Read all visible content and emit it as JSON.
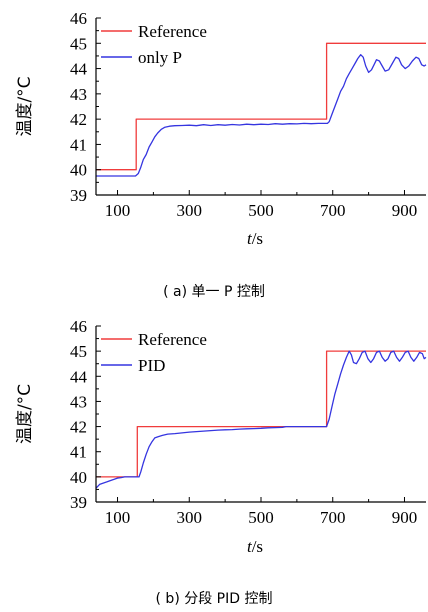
{
  "chart_data": [
    {
      "type": "line",
      "caption": "( a) 单一 P 控制",
      "xlabel": "t/s",
      "ylabel": "温度/°C",
      "xlim": [
        40,
        960
      ],
      "ylim": [
        39,
        46
      ],
      "xticks": [
        100,
        300,
        500,
        700,
        900
      ],
      "yticks": [
        39,
        40,
        41,
        42,
        43,
        44,
        45,
        46
      ],
      "grid": false,
      "legend": "top-left",
      "series": [
        {
          "name": "Reference",
          "color": "#f03c3c",
          "points": [
            [
              40,
              40
            ],
            [
              152,
              40
            ],
            [
              152,
              42
            ],
            [
              683,
              42
            ],
            [
              683,
              45
            ],
            [
              960,
              45
            ]
          ]
        },
        {
          "name": "only P",
          "color": "#3535e0",
          "points": [
            [
              40,
              39.75
            ],
            [
              150,
              39.75
            ],
            [
              158,
              39.85
            ],
            [
              165,
              40.1
            ],
            [
              172,
              40.4
            ],
            [
              180,
              40.6
            ],
            [
              188,
              40.9
            ],
            [
              196,
              41.1
            ],
            [
              204,
              41.3
            ],
            [
              212,
              41.45
            ],
            [
              222,
              41.6
            ],
            [
              232,
              41.68
            ],
            [
              245,
              41.72
            ],
            [
              260,
              41.74
            ],
            [
              280,
              41.75
            ],
            [
              300,
              41.76
            ],
            [
              320,
              41.74
            ],
            [
              340,
              41.78
            ],
            [
              360,
              41.75
            ],
            [
              380,
              41.78
            ],
            [
              400,
              41.76
            ],
            [
              420,
              41.79
            ],
            [
              440,
              41.77
            ],
            [
              460,
              41.8
            ],
            [
              480,
              41.78
            ],
            [
              500,
              41.8
            ],
            [
              520,
              41.79
            ],
            [
              540,
              41.82
            ],
            [
              560,
              41.8
            ],
            [
              580,
              41.82
            ],
            [
              600,
              41.81
            ],
            [
              620,
              41.83
            ],
            [
              640,
              41.82
            ],
            [
              660,
              41.83
            ],
            [
              685,
              41.83
            ],
            [
              690,
              41.9
            ],
            [
              698,
              42.2
            ],
            [
              706,
              42.5
            ],
            [
              714,
              42.8
            ],
            [
              722,
              43.1
            ],
            [
              730,
              43.3
            ],
            [
              738,
              43.6
            ],
            [
              746,
              43.8
            ],
            [
              754,
              44.0
            ],
            [
              762,
              44.2
            ],
            [
              770,
              44.4
            ],
            [
              778,
              44.55
            ],
            [
              785,
              44.45
            ],
            [
              792,
              44.1
            ],
            [
              800,
              43.85
            ],
            [
              808,
              43.95
            ],
            [
              815,
              44.15
            ],
            [
              822,
              44.35
            ],
            [
              830,
              44.3
            ],
            [
              838,
              44.1
            ],
            [
              846,
              43.9
            ],
            [
              856,
              43.95
            ],
            [
              866,
              44.2
            ],
            [
              876,
              44.45
            ],
            [
              884,
              44.4
            ],
            [
              892,
              44.15
            ],
            [
              902,
              44.0
            ],
            [
              912,
              44.1
            ],
            [
              922,
              44.3
            ],
            [
              932,
              44.45
            ],
            [
              940,
              44.4
            ],
            [
              948,
              44.15
            ],
            [
              955,
              44.1
            ],
            [
              960,
              44.15
            ]
          ]
        }
      ]
    },
    {
      "type": "line",
      "caption": "( b) 分段 PID 控制",
      "xlabel": "t/s",
      "ylabel": "温度/°C",
      "xlim": [
        40,
        960
      ],
      "ylim": [
        39,
        46
      ],
      "xticks": [
        100,
        300,
        500,
        700,
        900
      ],
      "yticks": [
        39,
        40,
        41,
        42,
        43,
        44,
        45,
        46
      ],
      "grid": false,
      "legend": "top-left",
      "series": [
        {
          "name": "Reference",
          "color": "#f03c3c",
          "points": [
            [
              40,
              40
            ],
            [
              155,
              40
            ],
            [
              155,
              42
            ],
            [
              683,
              42
            ],
            [
              683,
              45
            ],
            [
              960,
              45
            ]
          ]
        },
        {
          "name": "PID",
          "color": "#3535e0",
          "points": [
            [
              40,
              39.55
            ],
            [
              50,
              39.7
            ],
            [
              60,
              39.75
            ],
            [
              70,
              39.8
            ],
            [
              80,
              39.85
            ],
            [
              90,
              39.9
            ],
            [
              100,
              39.95
            ],
            [
              110,
              39.97
            ],
            [
              120,
              40
            ],
            [
              140,
              40
            ],
            [
              160,
              40
            ],
            [
              165,
              40.2
            ],
            [
              172,
              40.55
            ],
            [
              180,
              40.9
            ],
            [
              188,
              41.2
            ],
            [
              196,
              41.4
            ],
            [
              204,
              41.55
            ],
            [
              214,
              41.6
            ],
            [
              225,
              41.65
            ],
            [
              240,
              41.7
            ],
            [
              260,
              41.72
            ],
            [
              280,
              41.75
            ],
            [
              300,
              41.78
            ],
            [
              320,
              41.8
            ],
            [
              340,
              41.82
            ],
            [
              360,
              41.84
            ],
            [
              380,
              41.86
            ],
            [
              400,
              41.87
            ],
            [
              420,
              41.88
            ],
            [
              440,
              41.9
            ],
            [
              460,
              41.91
            ],
            [
              480,
              41.92
            ],
            [
              500,
              41.93
            ],
            [
              520,
              41.95
            ],
            [
              540,
              41.96
            ],
            [
              560,
              41.97
            ],
            [
              570,
              42
            ],
            [
              683,
              42
            ],
            [
              690,
              42.3
            ],
            [
              698,
              42.8
            ],
            [
              706,
              43.3
            ],
            [
              714,
              43.7
            ],
            [
              722,
              44.1
            ],
            [
              730,
              44.45
            ],
            [
              738,
              44.75
            ],
            [
              746,
              45
            ],
            [
              752,
              44.85
            ],
            [
              758,
              44.55
            ],
            [
              766,
              44.5
            ],
            [
              774,
              44.7
            ],
            [
              782,
              44.95
            ],
            [
              790,
              45
            ],
            [
              798,
              44.7
            ],
            [
              806,
              44.55
            ],
            [
              814,
              44.7
            ],
            [
              822,
              44.95
            ],
            [
              830,
              45
            ],
            [
              838,
              44.75
            ],
            [
              846,
              44.6
            ],
            [
              854,
              44.7
            ],
            [
              862,
              44.95
            ],
            [
              870,
              45
            ],
            [
              878,
              44.75
            ],
            [
              886,
              44.6
            ],
            [
              894,
              44.75
            ],
            [
              902,
              44.95
            ],
            [
              910,
              45
            ],
            [
              918,
              44.75
            ],
            [
              926,
              44.6
            ],
            [
              934,
              44.75
            ],
            [
              942,
              44.95
            ],
            [
              950,
              44.9
            ],
            [
              955,
              44.7
            ],
            [
              960,
              44.75
            ]
          ]
        }
      ]
    }
  ]
}
